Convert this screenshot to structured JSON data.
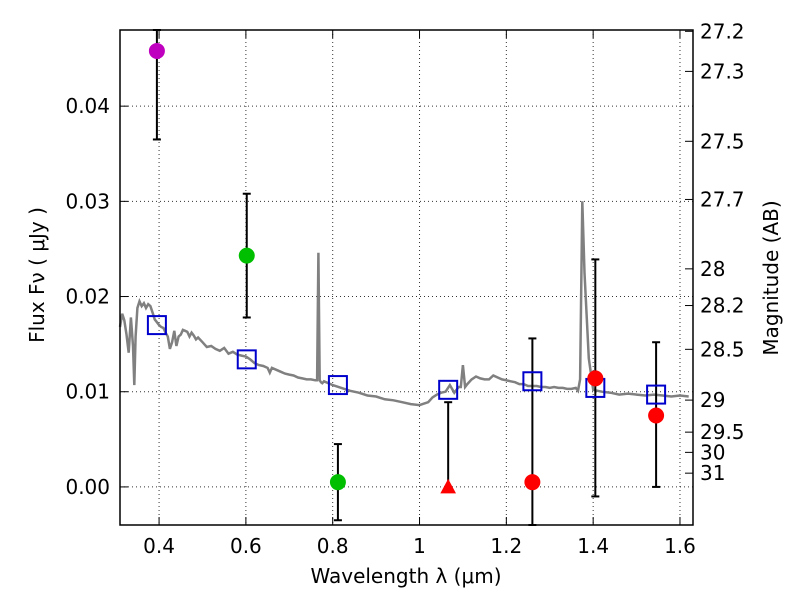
{
  "chart_data": {
    "type": "scatter",
    "xlabel": "Wavelength  λ (μm)",
    "ylabel": "Flux  Fν  ( μJy )",
    "ylabel_right": "Magnitude (AB)",
    "xlim": [
      0.31,
      1.63
    ],
    "ylim": [
      -0.004,
      0.048
    ],
    "grid": true,
    "x_ticks": [
      {
        "value": 0.4,
        "label": "0.4"
      },
      {
        "value": 0.6,
        "label": "0.6"
      },
      {
        "value": 0.8,
        "label": "0.8"
      },
      {
        "value": 1.0,
        "label": "1"
      },
      {
        "value": 1.2,
        "label": "1.2"
      },
      {
        "value": 1.4,
        "label": "1.4"
      },
      {
        "value": 1.6,
        "label": "1.6"
      }
    ],
    "y_ticks": [
      {
        "value": 0.0,
        "label": "0.00"
      },
      {
        "value": 0.01,
        "label": "0.01"
      },
      {
        "value": 0.02,
        "label": "0.02"
      },
      {
        "value": 0.03,
        "label": "0.03"
      },
      {
        "value": 0.04,
        "label": "0.04"
      }
    ],
    "mag_ticks": [
      {
        "mag": 27.2,
        "label": "27.2"
      },
      {
        "mag": 27.3,
        "label": "27.3"
      },
      {
        "mag": 27.5,
        "label": "27.5"
      },
      {
        "mag": 27.7,
        "label": "27.7"
      },
      {
        "mag": 28,
        "label": "28"
      },
      {
        "mag": 28.2,
        "label": "28.2"
      },
      {
        "mag": 28.5,
        "label": "28.5"
      },
      {
        "mag": 29,
        "label": "29"
      },
      {
        "mag": 29.5,
        "label": "29.5"
      },
      {
        "mag": 30,
        "label": "30"
      },
      {
        "mag": 31,
        "label": "31"
      }
    ],
    "observed": [
      {
        "x": 0.395,
        "y": 0.0458,
        "yerr_low": 0.0365,
        "yerr_high": 0.048,
        "marker": "circle",
        "color": "#bf00bf"
      },
      {
        "x": 0.602,
        "y": 0.0243,
        "yerr_low": 0.0178,
        "yerr_high": 0.0308,
        "marker": "circle",
        "color": "#00bf00"
      },
      {
        "x": 0.812,
        "y": 0.0005,
        "yerr_low": -0.0035,
        "yerr_high": 0.0045,
        "marker": "circle",
        "color": "#00bf00"
      },
      {
        "x": 1.066,
        "y": 0.0,
        "yerr_low": 0.0,
        "yerr_high": 0.0089,
        "marker": "triangle",
        "color": "#ff0000"
      },
      {
        "x": 1.26,
        "y": 0.0005,
        "yerr_low": -0.004,
        "yerr_high": 0.0156,
        "marker": "circle",
        "color": "#ff0000"
      },
      {
        "x": 1.405,
        "y": 0.0114,
        "yerr_low": -0.001,
        "yerr_high": 0.0239,
        "marker": "circle",
        "color": "#ff0000"
      },
      {
        "x": 1.545,
        "y": 0.0075,
        "yerr_low": 0.0,
        "yerr_high": 0.0152,
        "marker": "circle",
        "color": "#ff0000"
      }
    ],
    "model_points": [
      {
        "x": 0.395,
        "y": 0.017
      },
      {
        "x": 0.602,
        "y": 0.0134
      },
      {
        "x": 0.812,
        "y": 0.0107
      },
      {
        "x": 1.066,
        "y": 0.0102
      },
      {
        "x": 1.26,
        "y": 0.0111
      },
      {
        "x": 1.405,
        "y": 0.0104
      },
      {
        "x": 1.545,
        "y": 0.0097
      }
    ],
    "model_spectrum": {
      "color": "#808080",
      "x": [
        0.31,
        0.315,
        0.32,
        0.325,
        0.33,
        0.335,
        0.34,
        0.343,
        0.346,
        0.35,
        0.355,
        0.36,
        0.365,
        0.37,
        0.375,
        0.38,
        0.385,
        0.39,
        0.395,
        0.4,
        0.405,
        0.41,
        0.415,
        0.42,
        0.425,
        0.43,
        0.435,
        0.44,
        0.445,
        0.45,
        0.455,
        0.46,
        0.465,
        0.47,
        0.475,
        0.48,
        0.485,
        0.49,
        0.5,
        0.51,
        0.52,
        0.53,
        0.54,
        0.55,
        0.56,
        0.57,
        0.58,
        0.59,
        0.6,
        0.61,
        0.62,
        0.63,
        0.64,
        0.65,
        0.655,
        0.66,
        0.67,
        0.68,
        0.69,
        0.7,
        0.71,
        0.72,
        0.73,
        0.74,
        0.75,
        0.76,
        0.764,
        0.767,
        0.77,
        0.773,
        0.776,
        0.78,
        0.79,
        0.8,
        0.82,
        0.84,
        0.86,
        0.88,
        0.9,
        0.92,
        0.94,
        0.96,
        0.98,
        1.0,
        1.02,
        1.03,
        1.04,
        1.05,
        1.06,
        1.07,
        1.08,
        1.09,
        1.095,
        1.1,
        1.105,
        1.11,
        1.12,
        1.13,
        1.14,
        1.15,
        1.16,
        1.17,
        1.18,
        1.19,
        1.2,
        1.21,
        1.22,
        1.23,
        1.24,
        1.25,
        1.26,
        1.27,
        1.28,
        1.29,
        1.3,
        1.31,
        1.32,
        1.33,
        1.34,
        1.35,
        1.36,
        1.365,
        1.37,
        1.375,
        1.38,
        1.39,
        1.4,
        1.42,
        1.44,
        1.46,
        1.48,
        1.5,
        1.52,
        1.54,
        1.56,
        1.58,
        1.6,
        1.62
      ],
      "y": [
        0.0168,
        0.0182,
        0.0175,
        0.016,
        0.0141,
        0.0178,
        0.0148,
        0.0107,
        0.0158,
        0.0188,
        0.0195,
        0.019,
        0.0193,
        0.0188,
        0.0192,
        0.019,
        0.0183,
        0.0176,
        0.0173,
        0.017,
        0.0168,
        0.0167,
        0.0162,
        0.0158,
        0.0145,
        0.0152,
        0.0164,
        0.0148,
        0.0158,
        0.016,
        0.0165,
        0.0164,
        0.0163,
        0.0158,
        0.0162,
        0.0159,
        0.0155,
        0.0157,
        0.0152,
        0.0147,
        0.0148,
        0.0145,
        0.0143,
        0.0146,
        0.014,
        0.0142,
        0.0139,
        0.0138,
        0.0137,
        0.0134,
        0.013,
        0.0128,
        0.0127,
        0.0125,
        0.012,
        0.0125,
        0.0123,
        0.0121,
        0.0119,
        0.0118,
        0.0117,
        0.0115,
        0.0114,
        0.0113,
        0.0113,
        0.0112,
        0.0112,
        0.0246,
        0.0112,
        0.011,
        0.0109,
        0.0111,
        0.0109,
        0.0107,
        0.0104,
        0.0101,
        0.0099,
        0.0096,
        0.0095,
        0.0092,
        0.0091,
        0.0089,
        0.0087,
        0.0086,
        0.0089,
        0.0094,
        0.0097,
        0.0099,
        0.01,
        0.0107,
        0.0099,
        0.0105,
        0.0105,
        0.0128,
        0.0105,
        0.0108,
        0.0113,
        0.0116,
        0.0114,
        0.0113,
        0.0113,
        0.0117,
        0.0115,
        0.0113,
        0.0112,
        0.0111,
        0.011,
        0.0108,
        0.0108,
        0.0106,
        0.0106,
        0.0106,
        0.0105,
        0.0105,
        0.0104,
        0.0105,
        0.0104,
        0.0104,
        0.0103,
        0.0103,
        0.0104,
        0.0101,
        0.0113,
        0.03,
        0.0225,
        0.0135,
        0.0102,
        0.01,
        0.0099,
        0.0097,
        0.0098,
        0.0097,
        0.0096,
        0.0097,
        0.0096,
        0.0095,
        0.0096,
        0.0095
      ]
    }
  }
}
